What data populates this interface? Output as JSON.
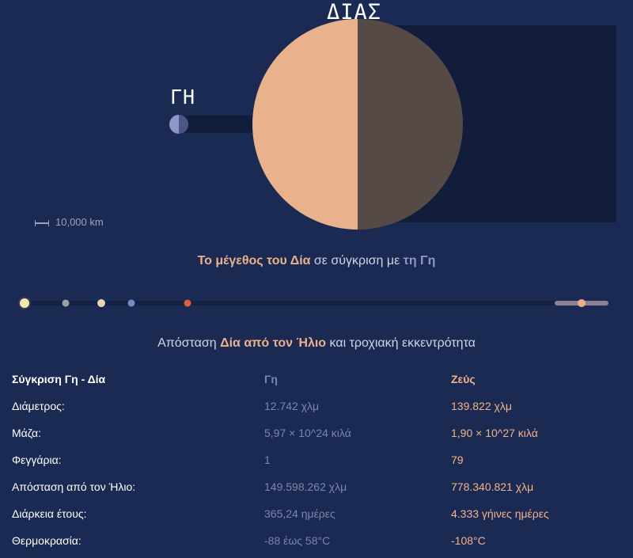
{
  "labels": {
    "jupiter": "ΔΙΑΣ",
    "earth": "ΓΗ"
  },
  "scale": {
    "label": "10,000 km"
  },
  "size_caption": {
    "highlight_1": "Το μέγεθος του Δία",
    "middle": " σε σύγκριση με ",
    "highlight_2": "τη Γη"
  },
  "distance_caption": {
    "prefix": "Απόσταση ",
    "highlight": "Δία από τον Ήλιο",
    "suffix": " και τροχιακή εκκεντρότητα"
  },
  "colors": {
    "background": "#1b2a52",
    "jupiter_light": "#e9b18c",
    "jupiter_dark": "#564a46",
    "earth_light": "#8d97c9",
    "earth_dark": "#4d5683",
    "orbit_band": "#111d3b"
  },
  "orbit_bodies": [
    {
      "name": "sun",
      "color": "#f5e6b0"
    },
    {
      "name": "mercury",
      "color": "#9c9ca6"
    },
    {
      "name": "venus",
      "color": "#e9d5b5"
    },
    {
      "name": "earth",
      "color": "#7b86c4"
    },
    {
      "name": "mars",
      "color": "#d8603c"
    },
    {
      "name": "jupiter",
      "color": "#e9b18c"
    }
  ],
  "comparison": {
    "header": {
      "title": "Σύγκριση Γη - Δία",
      "earth": "Γη",
      "jupiter": "Ζεύς"
    },
    "rows": [
      {
        "label": "Διάμετρος:",
        "earth": "12.742 χλμ",
        "jupiter": "139.822 χλμ"
      },
      {
        "label": "Μάζα:",
        "earth": "5,97 × 10^24 κιλά",
        "jupiter": "1,90 × 10^27 κιλά"
      },
      {
        "label": "Φεγγάρια:",
        "earth": "1",
        "jupiter": "79"
      },
      {
        "label": "Απόσταση από τον Ήλιο:",
        "earth": "149.598.262 χλμ",
        "jupiter": "778.340.821 χλμ"
      },
      {
        "label": "Διάρκεια έτους:",
        "earth": "365,24 ημέρες",
        "jupiter": "4.333 γήινες ημέρες"
      },
      {
        "label": "Θερμοκρασία:",
        "earth": "-88 έως 58°C",
        "jupiter": "-108°C"
      }
    ]
  }
}
